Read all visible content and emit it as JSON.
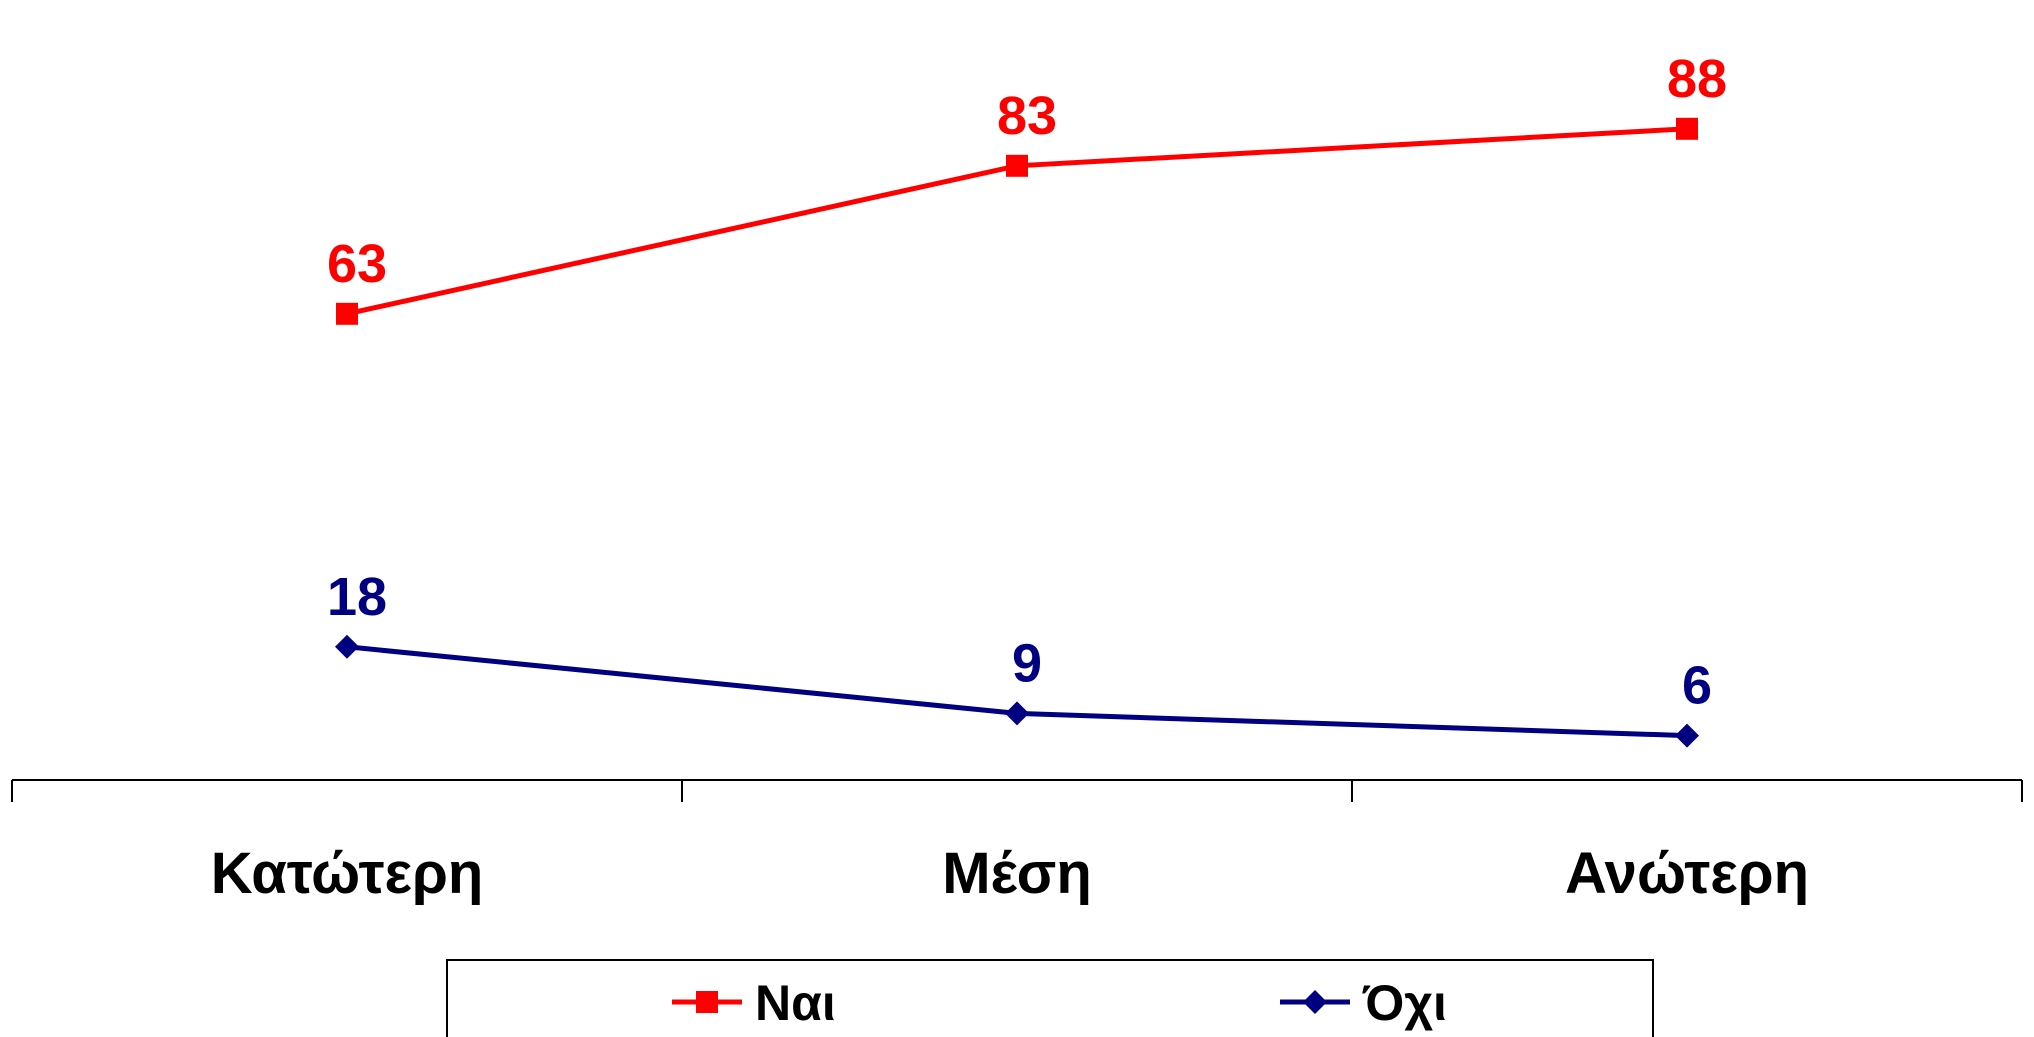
{
  "chart_data": {
    "type": "line",
    "categories": [
      "Κατώτερη",
      "Μέση",
      "Ανώτερη"
    ],
    "series": [
      {
        "name": "Ναι",
        "values": [
          63,
          83,
          88
        ],
        "color": "#ff0000",
        "marker": "square"
      },
      {
        "name": "Όχι",
        "values": [
          18,
          9,
          6
        ],
        "color": "#000080",
        "marker": "diamond"
      }
    ],
    "ylim": [
      0,
      100
    ],
    "grid": false,
    "legend": "bottom"
  }
}
